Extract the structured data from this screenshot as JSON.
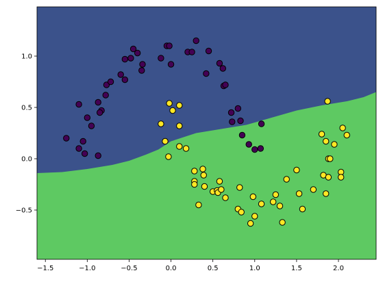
{
  "chart_data": {
    "type": "scatter",
    "title": "",
    "xlabel": "",
    "ylabel": "",
    "xlim": [
      -1.6,
      2.45
    ],
    "ylim": [
      -0.98,
      1.48
    ],
    "grid": false,
    "legend": "none",
    "xticks": [
      {
        "value": -1.5,
        "label": "−1.5"
      },
      {
        "value": -1.0,
        "label": "−1.0"
      },
      {
        "value": -0.5,
        "label": "−0.5"
      },
      {
        "value": 0.0,
        "label": "0.0"
      },
      {
        "value": 0.5,
        "label": "0.5"
      },
      {
        "value": 1.0,
        "label": "1.0"
      },
      {
        "value": 1.5,
        "label": "1.5"
      },
      {
        "value": 2.0,
        "label": "2.0"
      }
    ],
    "yticks": [
      {
        "value": -0.5,
        "label": "−0.5"
      },
      {
        "value": 0.0,
        "label": "0.0"
      },
      {
        "value": 0.5,
        "label": "0.5"
      },
      {
        "value": 1.0,
        "label": "1.0"
      }
    ],
    "colors": {
      "region_class0": "#3b528b",
      "region_class1": "#5ec962",
      "point_class0": "#440154",
      "point_class1": "#fde725",
      "point_edge": "#000000"
    },
    "decision_boundary": [
      [
        -1.6,
        -0.14
      ],
      [
        -1.3,
        -0.13
      ],
      [
        -1.0,
        -0.1
      ],
      [
        -0.7,
        -0.06
      ],
      [
        -0.5,
        -0.02
      ],
      [
        -0.3,
        0.04
      ],
      [
        -0.15,
        0.09
      ],
      [
        0.0,
        0.17
      ],
      [
        0.3,
        0.25
      ],
      [
        0.6,
        0.29
      ],
      [
        0.9,
        0.33
      ],
      [
        1.2,
        0.4
      ],
      [
        1.5,
        0.47
      ],
      [
        1.8,
        0.52
      ],
      [
        2.1,
        0.56
      ],
      [
        2.3,
        0.6
      ],
      [
        2.45,
        0.65
      ]
    ],
    "series": [
      {
        "class": 0,
        "points": [
          [
            -1.25,
            0.2
          ],
          [
            -1.1,
            0.53
          ],
          [
            -1.1,
            0.1
          ],
          [
            -1.05,
            0.17
          ],
          [
            -1.03,
            0.05
          ],
          [
            -1.0,
            0.4
          ],
          [
            -0.95,
            0.32
          ],
          [
            -0.87,
            0.03
          ],
          [
            -0.87,
            0.55
          ],
          [
            -0.83,
            0.47
          ],
          [
            -0.85,
            0.45
          ],
          [
            -0.78,
            0.62
          ],
          [
            -0.77,
            0.72
          ],
          [
            -0.72,
            0.75
          ],
          [
            -0.6,
            0.82
          ],
          [
            -0.55,
            0.77
          ],
          [
            -0.55,
            0.97
          ],
          [
            -0.48,
            0.98
          ],
          [
            -0.45,
            1.07
          ],
          [
            -0.4,
            1.03
          ],
          [
            -0.35,
            0.86
          ],
          [
            -0.34,
            0.92
          ],
          [
            -0.12,
            0.98
          ],
          [
            -0.05,
            1.1
          ],
          [
            -0.02,
            1.1
          ],
          [
            0.0,
            0.92
          ],
          [
            0.2,
            1.04
          ],
          [
            0.25,
            1.04
          ],
          [
            0.3,
            1.15
          ],
          [
            0.42,
            0.83
          ],
          [
            0.45,
            1.05
          ],
          [
            0.58,
            0.93
          ],
          [
            0.62,
            0.88
          ],
          [
            0.63,
            0.71
          ],
          [
            0.65,
            0.72
          ],
          [
            0.72,
            0.45
          ],
          [
            0.73,
            0.36
          ],
          [
            0.8,
            0.49
          ],
          [
            0.83,
            0.37
          ],
          [
            0.85,
            0.23
          ],
          [
            0.93,
            0.14
          ],
          [
            1.0,
            0.09
          ],
          [
            1.07,
            0.1
          ],
          [
            1.08,
            0.34
          ]
        ]
      },
      {
        "class": 1,
        "points": [
          [
            -0.12,
            0.34
          ],
          [
            -0.07,
            0.17
          ],
          [
            -0.03,
            0.02
          ],
          [
            -0.02,
            0.54
          ],
          [
            0.02,
            0.47
          ],
          [
            0.1,
            0.12
          ],
          [
            0.1,
            0.32
          ],
          [
            0.1,
            0.52
          ],
          [
            0.18,
            0.1
          ],
          [
            0.28,
            -0.12
          ],
          [
            0.28,
            -0.22
          ],
          [
            0.28,
            -0.25
          ],
          [
            0.33,
            -0.45
          ],
          [
            0.38,
            -0.1
          ],
          [
            0.39,
            -0.16
          ],
          [
            0.4,
            -0.27
          ],
          [
            0.5,
            -0.32
          ],
          [
            0.55,
            -0.31
          ],
          [
            0.56,
            -0.33
          ],
          [
            0.58,
            -0.22
          ],
          [
            0.6,
            -0.3
          ],
          [
            0.65,
            -0.38
          ],
          [
            0.8,
            -0.49
          ],
          [
            0.82,
            -0.28
          ],
          [
            0.84,
            -0.52
          ],
          [
            0.95,
            -0.63
          ],
          [
            0.98,
            -0.37
          ],
          [
            1.0,
            -0.56
          ],
          [
            1.08,
            -0.44
          ],
          [
            1.22,
            -0.42
          ],
          [
            1.25,
            -0.35
          ],
          [
            1.3,
            -0.46
          ],
          [
            1.33,
            -0.62
          ],
          [
            1.38,
            -0.2
          ],
          [
            1.5,
            -0.11
          ],
          [
            1.53,
            -0.34
          ],
          [
            1.57,
            -0.49
          ],
          [
            1.7,
            -0.3
          ],
          [
            1.8,
            0.24
          ],
          [
            1.82,
            -0.16
          ],
          [
            1.85,
            0.17
          ],
          [
            1.85,
            -0.34
          ],
          [
            1.88,
            0.0
          ],
          [
            1.88,
            -0.18
          ],
          [
            1.87,
            0.56
          ],
          [
            1.9,
            0.0
          ],
          [
            1.95,
            0.14
          ],
          [
            2.03,
            -0.13
          ],
          [
            2.03,
            -0.18
          ],
          [
            2.05,
            0.3
          ],
          [
            2.1,
            0.23
          ]
        ]
      }
    ]
  }
}
